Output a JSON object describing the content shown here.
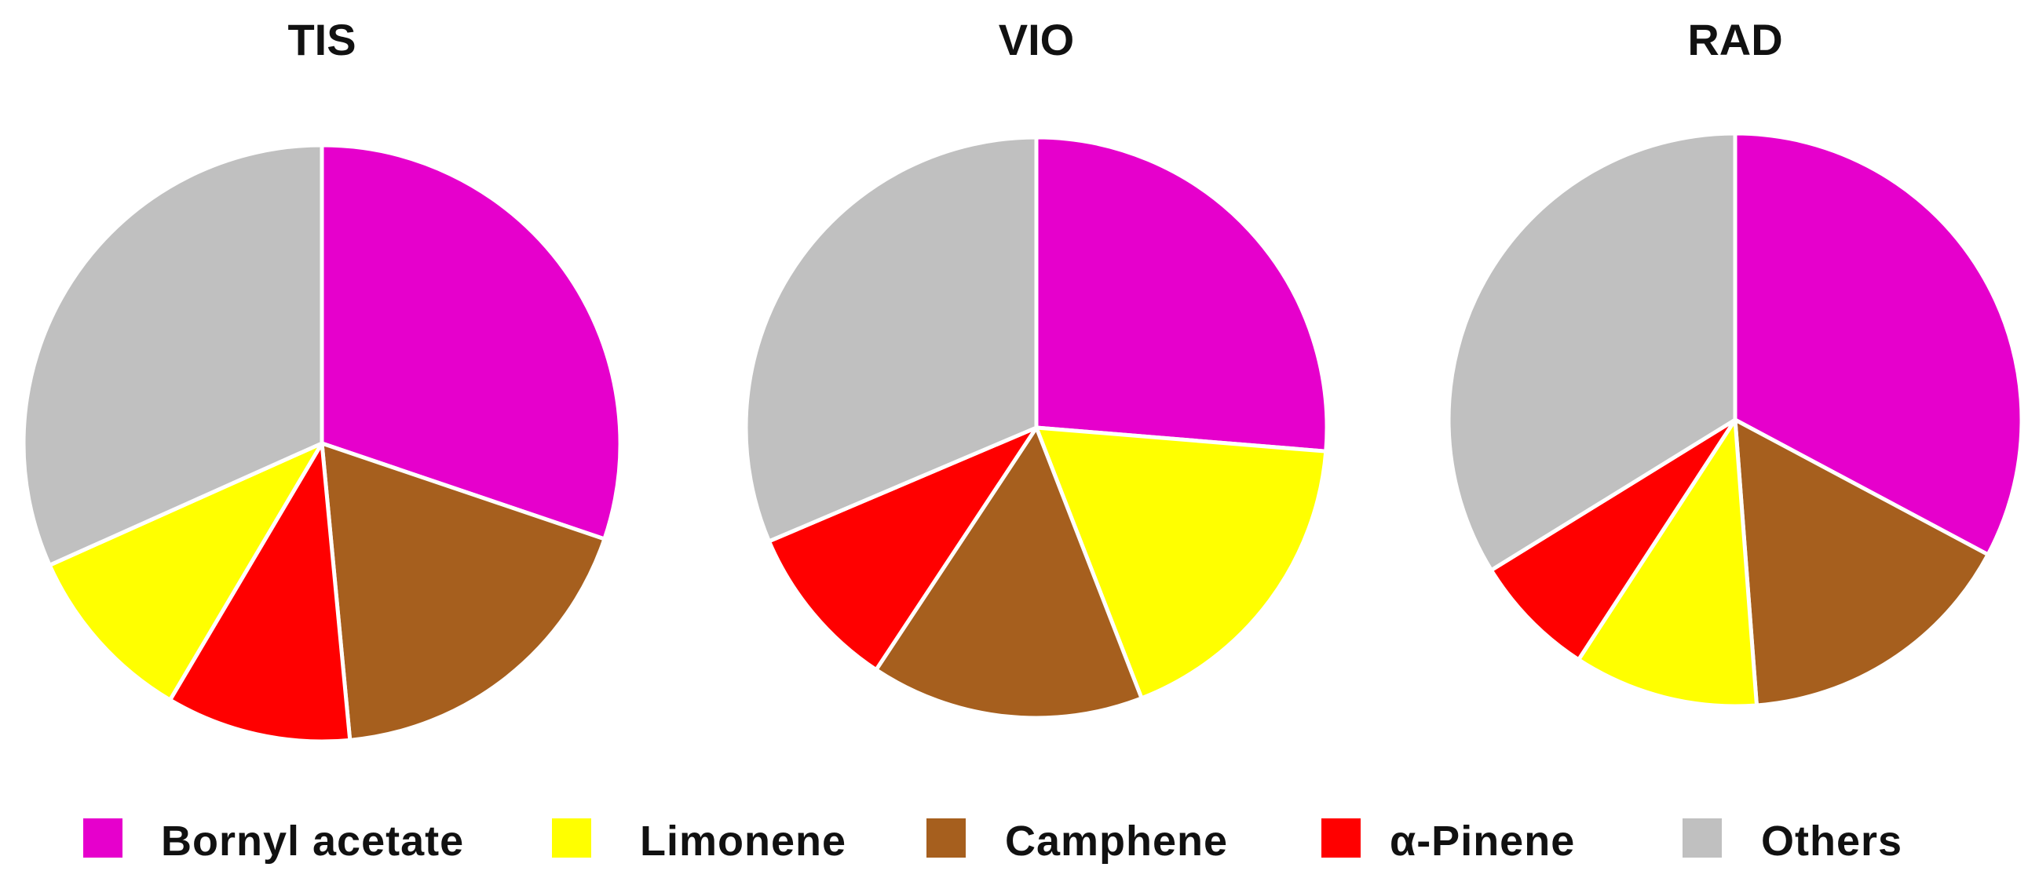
{
  "chart_data": [
    {
      "type": "pie",
      "title": "TIS",
      "categories": [
        "Bornyl acetate",
        "Camphene",
        "α-Pinene",
        "Limonene",
        "Others"
      ],
      "values": [
        30.2,
        18.3,
        10.0,
        9.8,
        31.7
      ]
    },
    {
      "type": "pie",
      "title": "VIO",
      "categories": [
        "Bornyl acetate",
        "Limonene",
        "Camphene",
        "α-Pinene",
        "Others"
      ],
      "values": [
        26.3,
        17.8,
        15.2,
        9.3,
        31.4
      ]
    },
    {
      "type": "pie",
      "title": "RAD",
      "categories": [
        "Bornyl acetate",
        "Camphene",
        "Limonene",
        "α-Pinene",
        "Others"
      ],
      "values": [
        32.8,
        16.0,
        10.4,
        7.0,
        33.8
      ]
    }
  ],
  "legend": {
    "items": [
      {
        "label": "Bornyl acetate",
        "color": "#E600CC"
      },
      {
        "label": "Limonene",
        "color": "#FFFF00"
      },
      {
        "label": "Camphene",
        "color": "#A65F1E"
      },
      {
        "label": "α-Pinene",
        "color": "#FF0000"
      },
      {
        "label": "Others",
        "color": "#C0C0C0"
      }
    ]
  },
  "colors": {
    "Bornyl acetate": "#E600CC",
    "Limonene": "#FFFF00",
    "Camphene": "#A65F1E",
    "α-Pinene": "#FF0000",
    "Others": "#C0C0C0"
  }
}
